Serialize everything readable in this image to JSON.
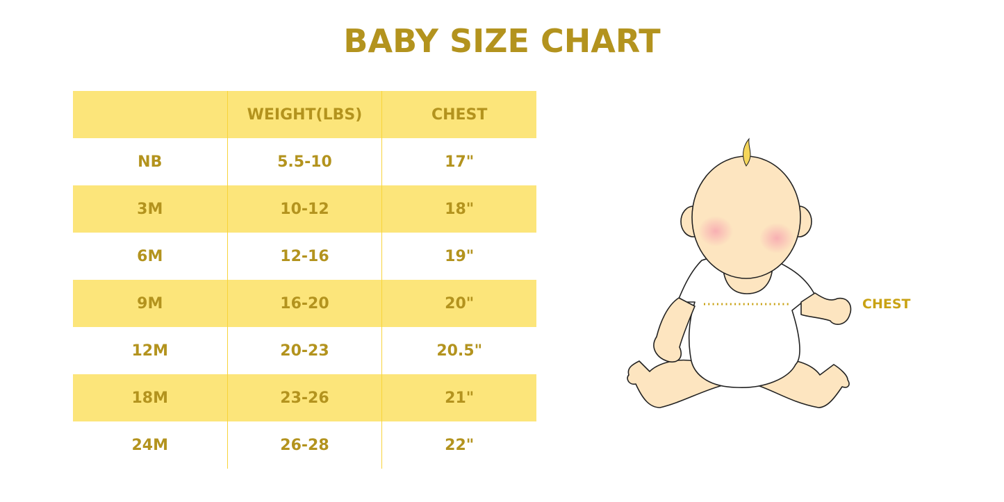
{
  "title": "BABY SIZE CHART",
  "table": {
    "headers": [
      "",
      "WEIGHT(LBS)",
      "CHEST"
    ],
    "rows": [
      [
        "NB",
        "5.5-10",
        "17\""
      ],
      [
        "3M",
        "10-12",
        "18\""
      ],
      [
        "6M",
        "12-16",
        "19\""
      ],
      [
        "9M",
        "16-20",
        "20\""
      ],
      [
        "12M",
        "20-23",
        "20.5\""
      ],
      [
        "18M",
        "23-26",
        "21\""
      ],
      [
        "24M",
        "26-28",
        "22\""
      ]
    ]
  },
  "illustration": {
    "chest_label": "CHEST"
  },
  "colors": {
    "text": "#b3931e",
    "band": "#fce57a",
    "divider": "#f8d43a",
    "skin": "#fde5c0"
  }
}
